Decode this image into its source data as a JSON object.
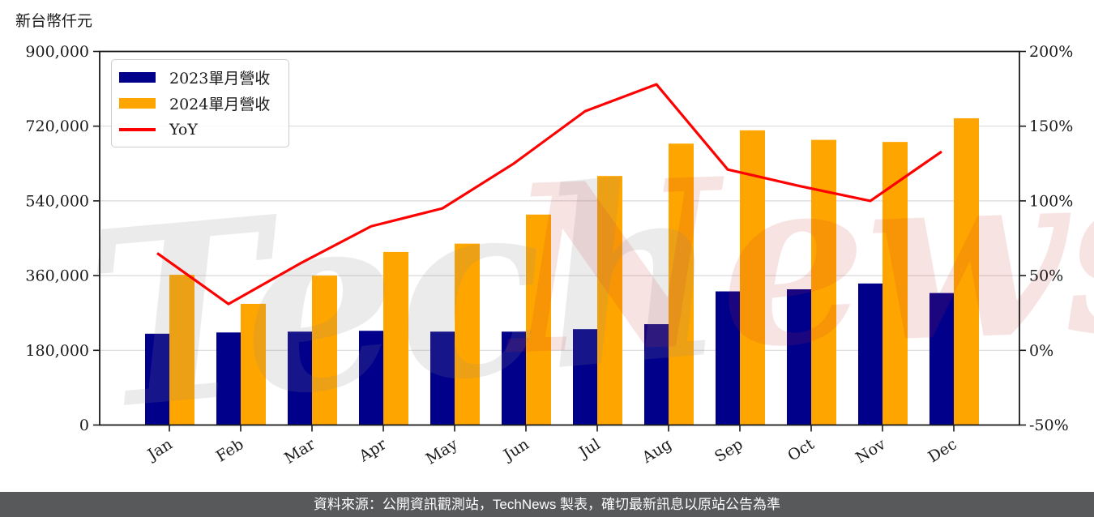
{
  "page": {
    "unit_label": "新台幣仟元",
    "watermark_tech": "Tech",
    "watermark_news": "News",
    "footer": "資料來源：公開資訊觀測站，TechNews 製表，確切最新訊息以原站公告為準"
  },
  "colors": {
    "bar_2023": "#00008B",
    "bar_2024": "#FFA500",
    "yoy_line": "#FF0000",
    "grid": "#D9D9D9",
    "axis": "#1A1A1A",
    "text": "#1A1A1A",
    "legend_border": "#CCCCCC",
    "footer_bg": "#58595B",
    "watermark_gray": "#8A8A8A",
    "watermark_red": "#CC3333"
  },
  "chart_data": {
    "type": "bar+line",
    "title": "",
    "categories": [
      "Jan",
      "Feb",
      "Mar",
      "Apr",
      "May",
      "Jun",
      "Jul",
      "Aug",
      "Sep",
      "Oct",
      "Nov",
      "Dec"
    ],
    "series": [
      {
        "name": "2023單月營收",
        "type": "bar",
        "axis": "left",
        "color_key": "bar_2023",
        "values": [
          220000,
          223000,
          225000,
          227000,
          225000,
          225000,
          231000,
          243000,
          322000,
          327000,
          341000,
          318000
        ]
      },
      {
        "name": "2024單月營收",
        "type": "bar",
        "axis": "left",
        "color_key": "bar_2024",
        "values": [
          362000,
          292000,
          360000,
          417000,
          437000,
          507000,
          600000,
          678000,
          710000,
          687000,
          682000,
          739000
        ]
      },
      {
        "name": "YoY",
        "type": "line",
        "axis": "right",
        "color_key": "yoy_line",
        "values": [
          65,
          31,
          58,
          83,
          95,
          125,
          160,
          178,
          121,
          110,
          100,
          133
        ]
      }
    ],
    "left_axis": {
      "label": "新台幣仟元",
      "min": 0,
      "max": 900000,
      "ticks": [
        0,
        180000,
        360000,
        540000,
        720000,
        900000
      ]
    },
    "right_axis": {
      "min": -50,
      "max": 200,
      "suffix": "%",
      "ticks": [
        -50,
        0,
        50,
        100,
        150,
        200
      ]
    },
    "legend_position": "upper-left",
    "grid": true,
    "xtick_rotation": -32
  }
}
